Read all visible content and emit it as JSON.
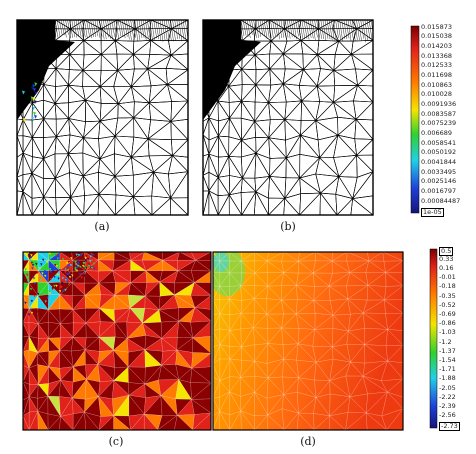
{
  "panels": [
    {
      "id": "a",
      "label": "(a)",
      "kind": "mesh",
      "refine": "corner-left"
    },
    {
      "id": "b",
      "label": "(b)",
      "kind": "mesh",
      "refine": "corner"
    },
    {
      "id": "c",
      "label": "(c)",
      "kind": "field-coarse"
    },
    {
      "id": "d",
      "label": "(d)",
      "kind": "field-smooth"
    }
  ],
  "colorbar_top": {
    "ticks": [
      "0.015873",
      "0.015038",
      "0.014203",
      "0.013368",
      "0.012533",
      "0.011698",
      "0.010863",
      "0.010028",
      "0.0091936",
      "0.0083587",
      "0.0075239",
      "0.006689",
      "0.0058541",
      "0.0050192",
      "0.0041844",
      "0.0033495",
      "0.0025146",
      "0.0016797",
      "0.00084487",
      "1e-05"
    ],
    "boxed_last": true
  },
  "colorbar_bottom": {
    "ticks": [
      "0.5",
      "0.33",
      "0.16",
      "-0.01",
      "-0.18",
      "-0.35",
      "-0.52",
      "-0.69",
      "-0.86",
      "-1.03",
      "-1.2",
      "-1.37",
      "-1.54",
      "-1.71",
      "-1.88",
      "-2.05",
      "-2.22",
      "-2.39",
      "-2.56",
      "-2.73"
    ],
    "boxed_first": true,
    "boxed_last": true
  },
  "colors": {
    "mesh_line": "#000000",
    "dark_red": "#8b0000",
    "red": "#e0221a",
    "orange": "#ff7a00",
    "yellow": "#f4e400",
    "green": "#2fd12f",
    "cyan": "#22d0e6",
    "blue": "#1f3fd9",
    "navy": "#14147a"
  }
}
